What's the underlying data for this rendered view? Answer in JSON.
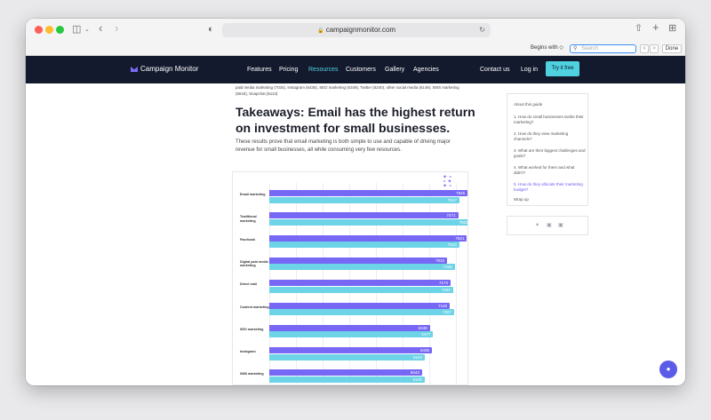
{
  "browser": {
    "url": "campaignmonitor.com",
    "find": {
      "mode": "Begins with ◇",
      "placeholder": "Search",
      "done": "Done"
    }
  },
  "nav": {
    "brand": "Campaign Monitor",
    "links": [
      "Features",
      "Pricing",
      "Resources",
      "Customers",
      "Gallery",
      "Agencies",
      "Contact us",
      "Log in"
    ],
    "cta": "Try it free"
  },
  "article": {
    "prev_text_1": "paid media marketing (7034), Instagram (6436), SEO marketing (6349), Twitter (6240), other social media (6149), SMS marketing",
    "prev_text_2": "(6043), Snapchat (5113)",
    "heading": "Takeaways: Email has the highest return on investment for small businesses.",
    "description": "These results prove that email marketing is both simple to use and capable of driving major revenue for small businesses, all while consuming very few resources."
  },
  "chart_data": {
    "type": "bar",
    "categories": [
      "Email marketing",
      "Traditional marketing",
      "Facebook",
      "Digital paid media marketing",
      "Direct mail",
      "Content marketing",
      "SEO marketing",
      "Instagram",
      "SMS marketing"
    ],
    "series": [
      {
        "values": [
          7845,
          7471,
          7821,
          7034,
          7174,
          7140,
          6349,
          6436,
          6043
        ]
      },
      {
        "values": [
          7517,
          7962,
          7510,
          7336,
          7264,
          7307,
          6477,
          6153,
          6140
        ]
      }
    ],
    "xlim": [
      0,
      9000
    ],
    "colors": [
      "#7767f5",
      "#6dd3e6"
    ]
  },
  "toc": {
    "title": "About this guide",
    "items": [
      "1. How do small businesses tackle their marketing?",
      "2. How do they view marketing channels?",
      "3. What are their biggest challenges and goals?",
      "4. What worked for them and what didn't?",
      "5. How do they allocate their marketing budget?",
      "Wrap up"
    ]
  },
  "share": {
    "icons": [
      "twitter-icon",
      "facebook-icon",
      "linkedin-icon"
    ]
  }
}
